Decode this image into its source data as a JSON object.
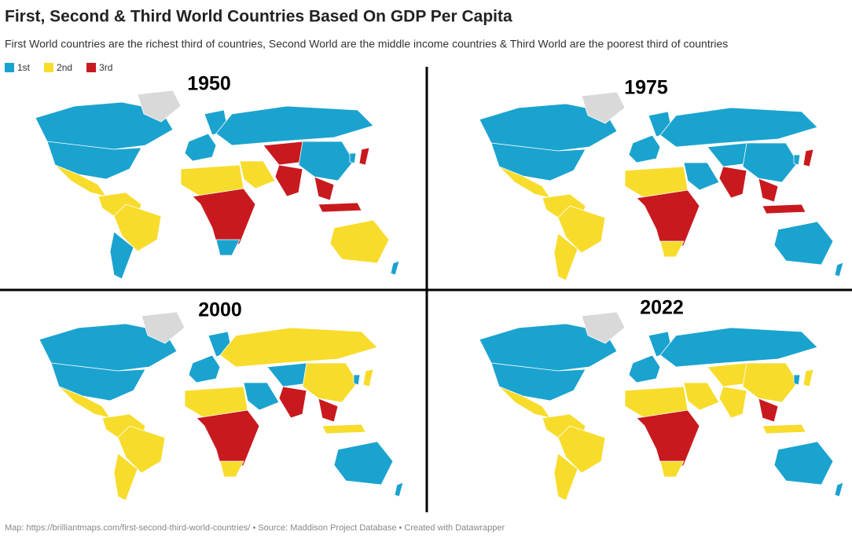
{
  "header": {
    "title": "First, Second & Third World Countries Based On GDP Per Capita",
    "subtitle": "First World countries are the richest third of countries, Second World are the middle income countries & Third World are the poorest third of countries"
  },
  "legend": [
    {
      "label": "1st",
      "color": "#1ba3cf"
    },
    {
      "label": "2nd",
      "color": "#f7dc2c"
    },
    {
      "label": "3rd",
      "color": "#c8191f"
    }
  ],
  "panels": [
    {
      "year": "1950"
    },
    {
      "year": "1975"
    },
    {
      "year": "2000"
    },
    {
      "year": "2022"
    }
  ],
  "footer": "Map: https://brilliantmaps.com/first-second-third-world-countries/ • Source: Maddison Project Database • Created with Datawrapper"
}
